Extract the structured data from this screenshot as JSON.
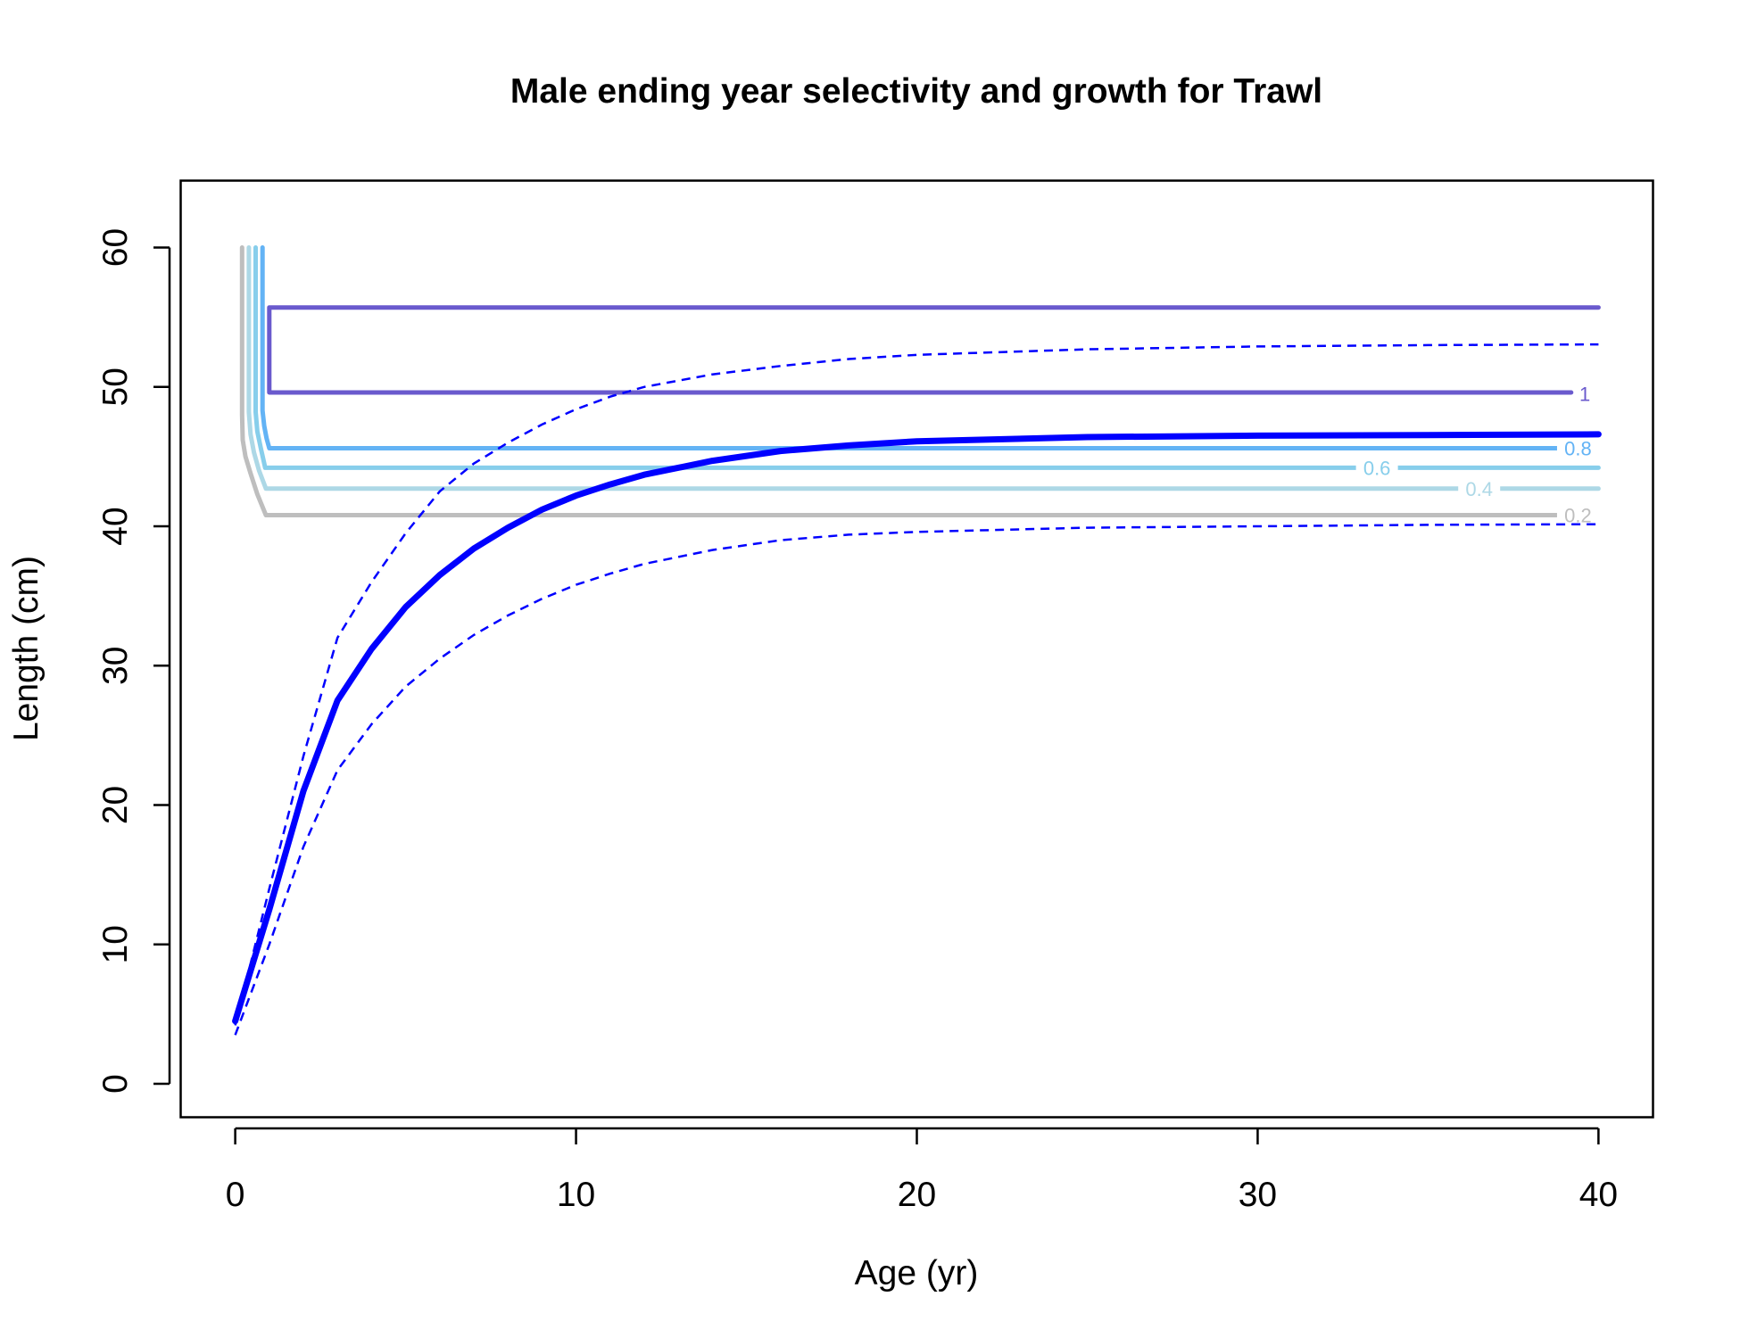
{
  "chart_data": {
    "type": "line",
    "title": "Male ending year selectivity and growth for Trawl",
    "xlabel": "Age (yr)",
    "ylabel": "Length (cm)",
    "xlim": [
      -1.6,
      41.6
    ],
    "ylim": [
      -2.4,
      64.8
    ],
    "xticks": [
      0,
      10,
      20,
      30,
      40
    ],
    "yticks": [
      0,
      10,
      20,
      30,
      40,
      50,
      60
    ],
    "grid": false,
    "legend": "none",
    "growth": {
      "color": "#0000ff",
      "mean": {
        "x": [
          0,
          1,
          2,
          3,
          4,
          5,
          6,
          7,
          8,
          9,
          10,
          11,
          12,
          14,
          16,
          18,
          20,
          25,
          30,
          35,
          40
        ],
        "y": [
          4.5,
          12.5,
          21.0,
          27.5,
          31.2,
          34.2,
          36.5,
          38.4,
          39.9,
          41.2,
          42.2,
          43.0,
          43.7,
          44.7,
          45.4,
          45.8,
          46.1,
          46.4,
          46.5,
          46.55,
          46.6
        ]
      },
      "upper": {
        "x": [
          0,
          1,
          2,
          3,
          4,
          5,
          6,
          7,
          8,
          9,
          10,
          11,
          12,
          14,
          16,
          18,
          20,
          25,
          30,
          35,
          40
        ],
        "y": [
          4.2,
          14.0,
          23.5,
          32.0,
          36.0,
          39.5,
          42.5,
          44.5,
          46.0,
          47.3,
          48.4,
          49.3,
          50.0,
          50.9,
          51.5,
          52.0,
          52.3,
          52.7,
          52.9,
          53.0,
          53.05
        ]
      },
      "lower": {
        "x": [
          0,
          1,
          2,
          3,
          4,
          5,
          6,
          7,
          8,
          9,
          10,
          11,
          12,
          14,
          16,
          18,
          20,
          25,
          30,
          35,
          40
        ],
        "y": [
          3.5,
          10.0,
          17.0,
          22.5,
          25.8,
          28.5,
          30.5,
          32.2,
          33.6,
          34.8,
          35.8,
          36.6,
          37.3,
          38.3,
          39.0,
          39.4,
          39.6,
          39.9,
          40.0,
          40.1,
          40.15
        ]
      }
    },
    "selectivity_contours": [
      {
        "level": "0.2",
        "label": "0.2",
        "color": "#bebebe",
        "label_x": 39.4,
        "label_y": 40.8,
        "x": [
          0.2,
          0.2,
          0.22,
          0.3,
          0.45,
          0.65,
          0.9,
          38.8
        ],
        "y": [
          60,
          48.0,
          46.2,
          45.0,
          43.8,
          42.3,
          40.8,
          40.8
        ]
      },
      {
        "level": "0.4",
        "label": "0.4",
        "color": "#add8e6",
        "label_x": 36.5,
        "label_y": 42.7,
        "x": [
          0.4,
          0.4,
          0.45,
          0.55,
          0.7,
          0.9,
          40
        ],
        "y": [
          60,
          48.2,
          46.6,
          45.3,
          44.0,
          42.7,
          42.7
        ]
      },
      {
        "level": "0.6",
        "label": "0.6",
        "color": "#87ceeb",
        "label_x": 33.5,
        "label_y": 44.2,
        "x": [
          0.6,
          0.6,
          0.65,
          0.75,
          0.88,
          40
        ],
        "y": [
          60,
          48.2,
          46.8,
          45.6,
          44.2,
          44.2
        ]
      },
      {
        "level": "0.8",
        "label": "0.8",
        "color": "#63b3f5",
        "label_x": 39.4,
        "label_y": 45.6,
        "x": [
          0.8,
          0.8,
          0.85,
          0.92,
          1.0,
          38.8
        ],
        "y": [
          60,
          48.3,
          47.2,
          46.3,
          45.6,
          45.6
        ]
      },
      {
        "level": "1",
        "label": "1",
        "color": "#6a5acd",
        "label_x": 39.6,
        "label_y": 49.5,
        "x": [
          40,
          1.0,
          1.0,
          39.2
        ],
        "y": [
          55.7,
          55.7,
          49.6,
          49.6
        ]
      }
    ]
  }
}
